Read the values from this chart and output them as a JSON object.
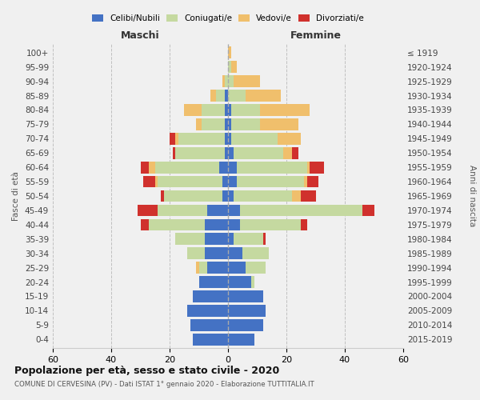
{
  "age_groups": [
    "0-4",
    "5-9",
    "10-14",
    "15-19",
    "20-24",
    "25-29",
    "30-34",
    "35-39",
    "40-44",
    "45-49",
    "50-54",
    "55-59",
    "60-64",
    "65-69",
    "70-74",
    "75-79",
    "80-84",
    "85-89",
    "90-94",
    "95-99",
    "100+"
  ],
  "birth_years": [
    "2015-2019",
    "2010-2014",
    "2005-2009",
    "2000-2004",
    "1995-1999",
    "1990-1994",
    "1985-1989",
    "1980-1984",
    "1975-1979",
    "1970-1974",
    "1965-1969",
    "1960-1964",
    "1955-1959",
    "1950-1954",
    "1945-1949",
    "1940-1944",
    "1935-1939",
    "1930-1934",
    "1925-1929",
    "1920-1924",
    "≤ 1919"
  ],
  "colors": {
    "celibe": "#4472C4",
    "coniugato": "#c5d9a0",
    "vedovo": "#f0bf6c",
    "divorziato": "#d0312d"
  },
  "maschi": {
    "celibe": [
      12,
      13,
      14,
      12,
      10,
      7,
      8,
      8,
      8,
      7,
      2,
      2,
      3,
      1,
      1,
      1,
      1,
      1,
      0,
      0,
      0
    ],
    "coniugato": [
      0,
      0,
      0,
      0,
      0,
      3,
      6,
      10,
      19,
      17,
      20,
      22,
      22,
      17,
      16,
      8,
      8,
      3,
      1,
      0,
      0
    ],
    "vedovo": [
      0,
      0,
      0,
      0,
      0,
      1,
      0,
      0,
      0,
      0,
      0,
      1,
      2,
      0,
      1,
      2,
      6,
      2,
      1,
      0,
      0
    ],
    "divorziato": [
      0,
      0,
      0,
      0,
      0,
      0,
      0,
      0,
      3,
      7,
      1,
      4,
      3,
      1,
      2,
      0,
      0,
      0,
      0,
      0,
      0
    ]
  },
  "femmine": {
    "nubile": [
      9,
      12,
      13,
      12,
      8,
      6,
      5,
      2,
      4,
      4,
      2,
      3,
      3,
      2,
      1,
      1,
      1,
      0,
      0,
      0,
      0
    ],
    "coniugata": [
      0,
      0,
      0,
      0,
      1,
      7,
      9,
      10,
      21,
      42,
      20,
      23,
      24,
      17,
      16,
      10,
      10,
      6,
      2,
      1,
      0
    ],
    "vedova": [
      0,
      0,
      0,
      0,
      0,
      0,
      0,
      0,
      0,
      0,
      3,
      1,
      1,
      3,
      8,
      13,
      17,
      12,
      9,
      2,
      1
    ],
    "divorziata": [
      0,
      0,
      0,
      0,
      0,
      0,
      0,
      1,
      2,
      4,
      5,
      4,
      5,
      2,
      0,
      0,
      0,
      0,
      0,
      0,
      0
    ]
  },
  "xlim": 60,
  "title": "Popolazione per età, sesso e stato civile - 2020",
  "subtitle": "COMUNE DI CERVESINA (PV) - Dati ISTAT 1° gennaio 2020 - Elaborazione TUTTITALIA.IT",
  "ylabel_left": "Fasce di età",
  "ylabel_right": "Anni di nascita",
  "xlabel_maschi": "Maschi",
  "xlabel_femmine": "Femmine",
  "legend_labels": [
    "Celibi/Nubili",
    "Coniugati/e",
    "Vedovi/e",
    "Divorziati/e"
  ],
  "bg_color": "#f0f0f0"
}
